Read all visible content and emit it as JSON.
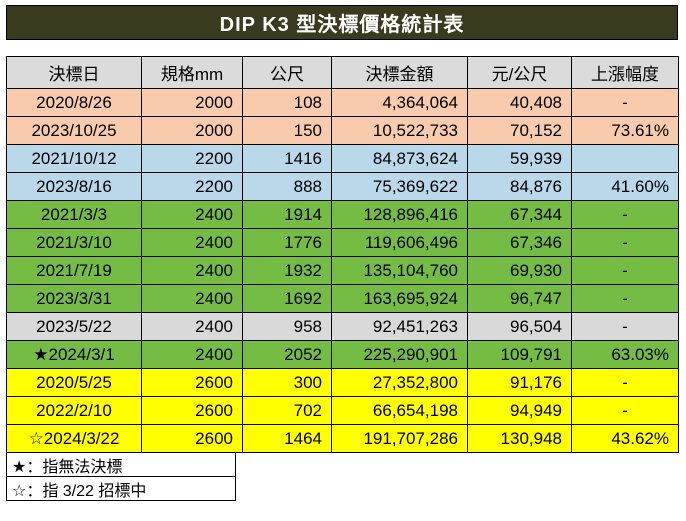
{
  "chart_data": {
    "type": "table",
    "title": "DIP K3 型決標價格統計表",
    "columns": [
      "決標日",
      "規格mm",
      "公尺",
      "決標金額",
      "元/公尺",
      "上漲幅度"
    ],
    "rows": [
      {
        "date": "2020/8/26",
        "spec": "2000",
        "length": "108",
        "amount": "4,364,064",
        "unit_price": "40,408",
        "increase": "-",
        "color_key": "peach"
      },
      {
        "date": "2023/10/25",
        "spec": "2000",
        "length": "150",
        "amount": "10,522,733",
        "unit_price": "70,152",
        "increase": "73.61%",
        "color_key": "peach"
      },
      {
        "date": "2021/10/12",
        "spec": "2200",
        "length": "1416",
        "amount": "84,873,624",
        "unit_price": "59,939",
        "increase": "",
        "color_key": "blue"
      },
      {
        "date": "2023/8/16",
        "spec": "2200",
        "length": "888",
        "amount": "75,369,622",
        "unit_price": "84,876",
        "increase": "41.60%",
        "color_key": "blue"
      },
      {
        "date": "2021/3/3",
        "spec": "2400",
        "length": "1914",
        "amount": "128,896,416",
        "unit_price": "67,344",
        "increase": "-",
        "color_key": "green"
      },
      {
        "date": "2021/3/10",
        "spec": "2400",
        "length": "1776",
        "amount": "119,606,496",
        "unit_price": "67,346",
        "increase": "-",
        "color_key": "green"
      },
      {
        "date": "2021/7/19",
        "spec": "2400",
        "length": "1932",
        "amount": "135,104,760",
        "unit_price": "69,930",
        "increase": "-",
        "color_key": "green"
      },
      {
        "date": "2023/3/31",
        "spec": "2400",
        "length": "1692",
        "amount": "163,695,924",
        "unit_price": "96,747",
        "increase": "-",
        "color_key": "green"
      },
      {
        "date": "2023/5/22",
        "spec": "2400",
        "length": "958",
        "amount": "92,451,263",
        "unit_price": "96,504",
        "increase": "-",
        "color_key": "gray"
      },
      {
        "date": "★2024/3/1",
        "spec": "2400",
        "length": "2052",
        "amount": "225,290,901",
        "unit_price": "109,791",
        "increase": "63.03%",
        "color_key": "green"
      },
      {
        "date": "2020/5/25",
        "spec": "2600",
        "length": "300",
        "amount": "27,352,800",
        "unit_price": "91,176",
        "increase": "-",
        "color_key": "yellow"
      },
      {
        "date": "2022/2/10",
        "spec": "2600",
        "length": "702",
        "amount": "66,654,198",
        "unit_price": "94,949",
        "increase": "-",
        "color_key": "yellow"
      },
      {
        "date": "☆2024/3/22",
        "spec": "2600",
        "length": "1464",
        "amount": "191,707,286",
        "unit_price": "130,948",
        "increase": "43.62%",
        "color_key": "yellow"
      }
    ],
    "footnotes": [
      "★：指無法決標",
      "☆：指 3/22 招標中"
    ]
  },
  "colors": {
    "title_bg": "#3a3a1e",
    "title_text": "#ffffff",
    "header_bg": "#dbdbdb",
    "peach": "#f8cbad",
    "blue": "#b9d8ea",
    "green": "#74bc44",
    "gray": "#d9d9d9",
    "yellow": "#ffff00",
    "border": "#000000"
  }
}
